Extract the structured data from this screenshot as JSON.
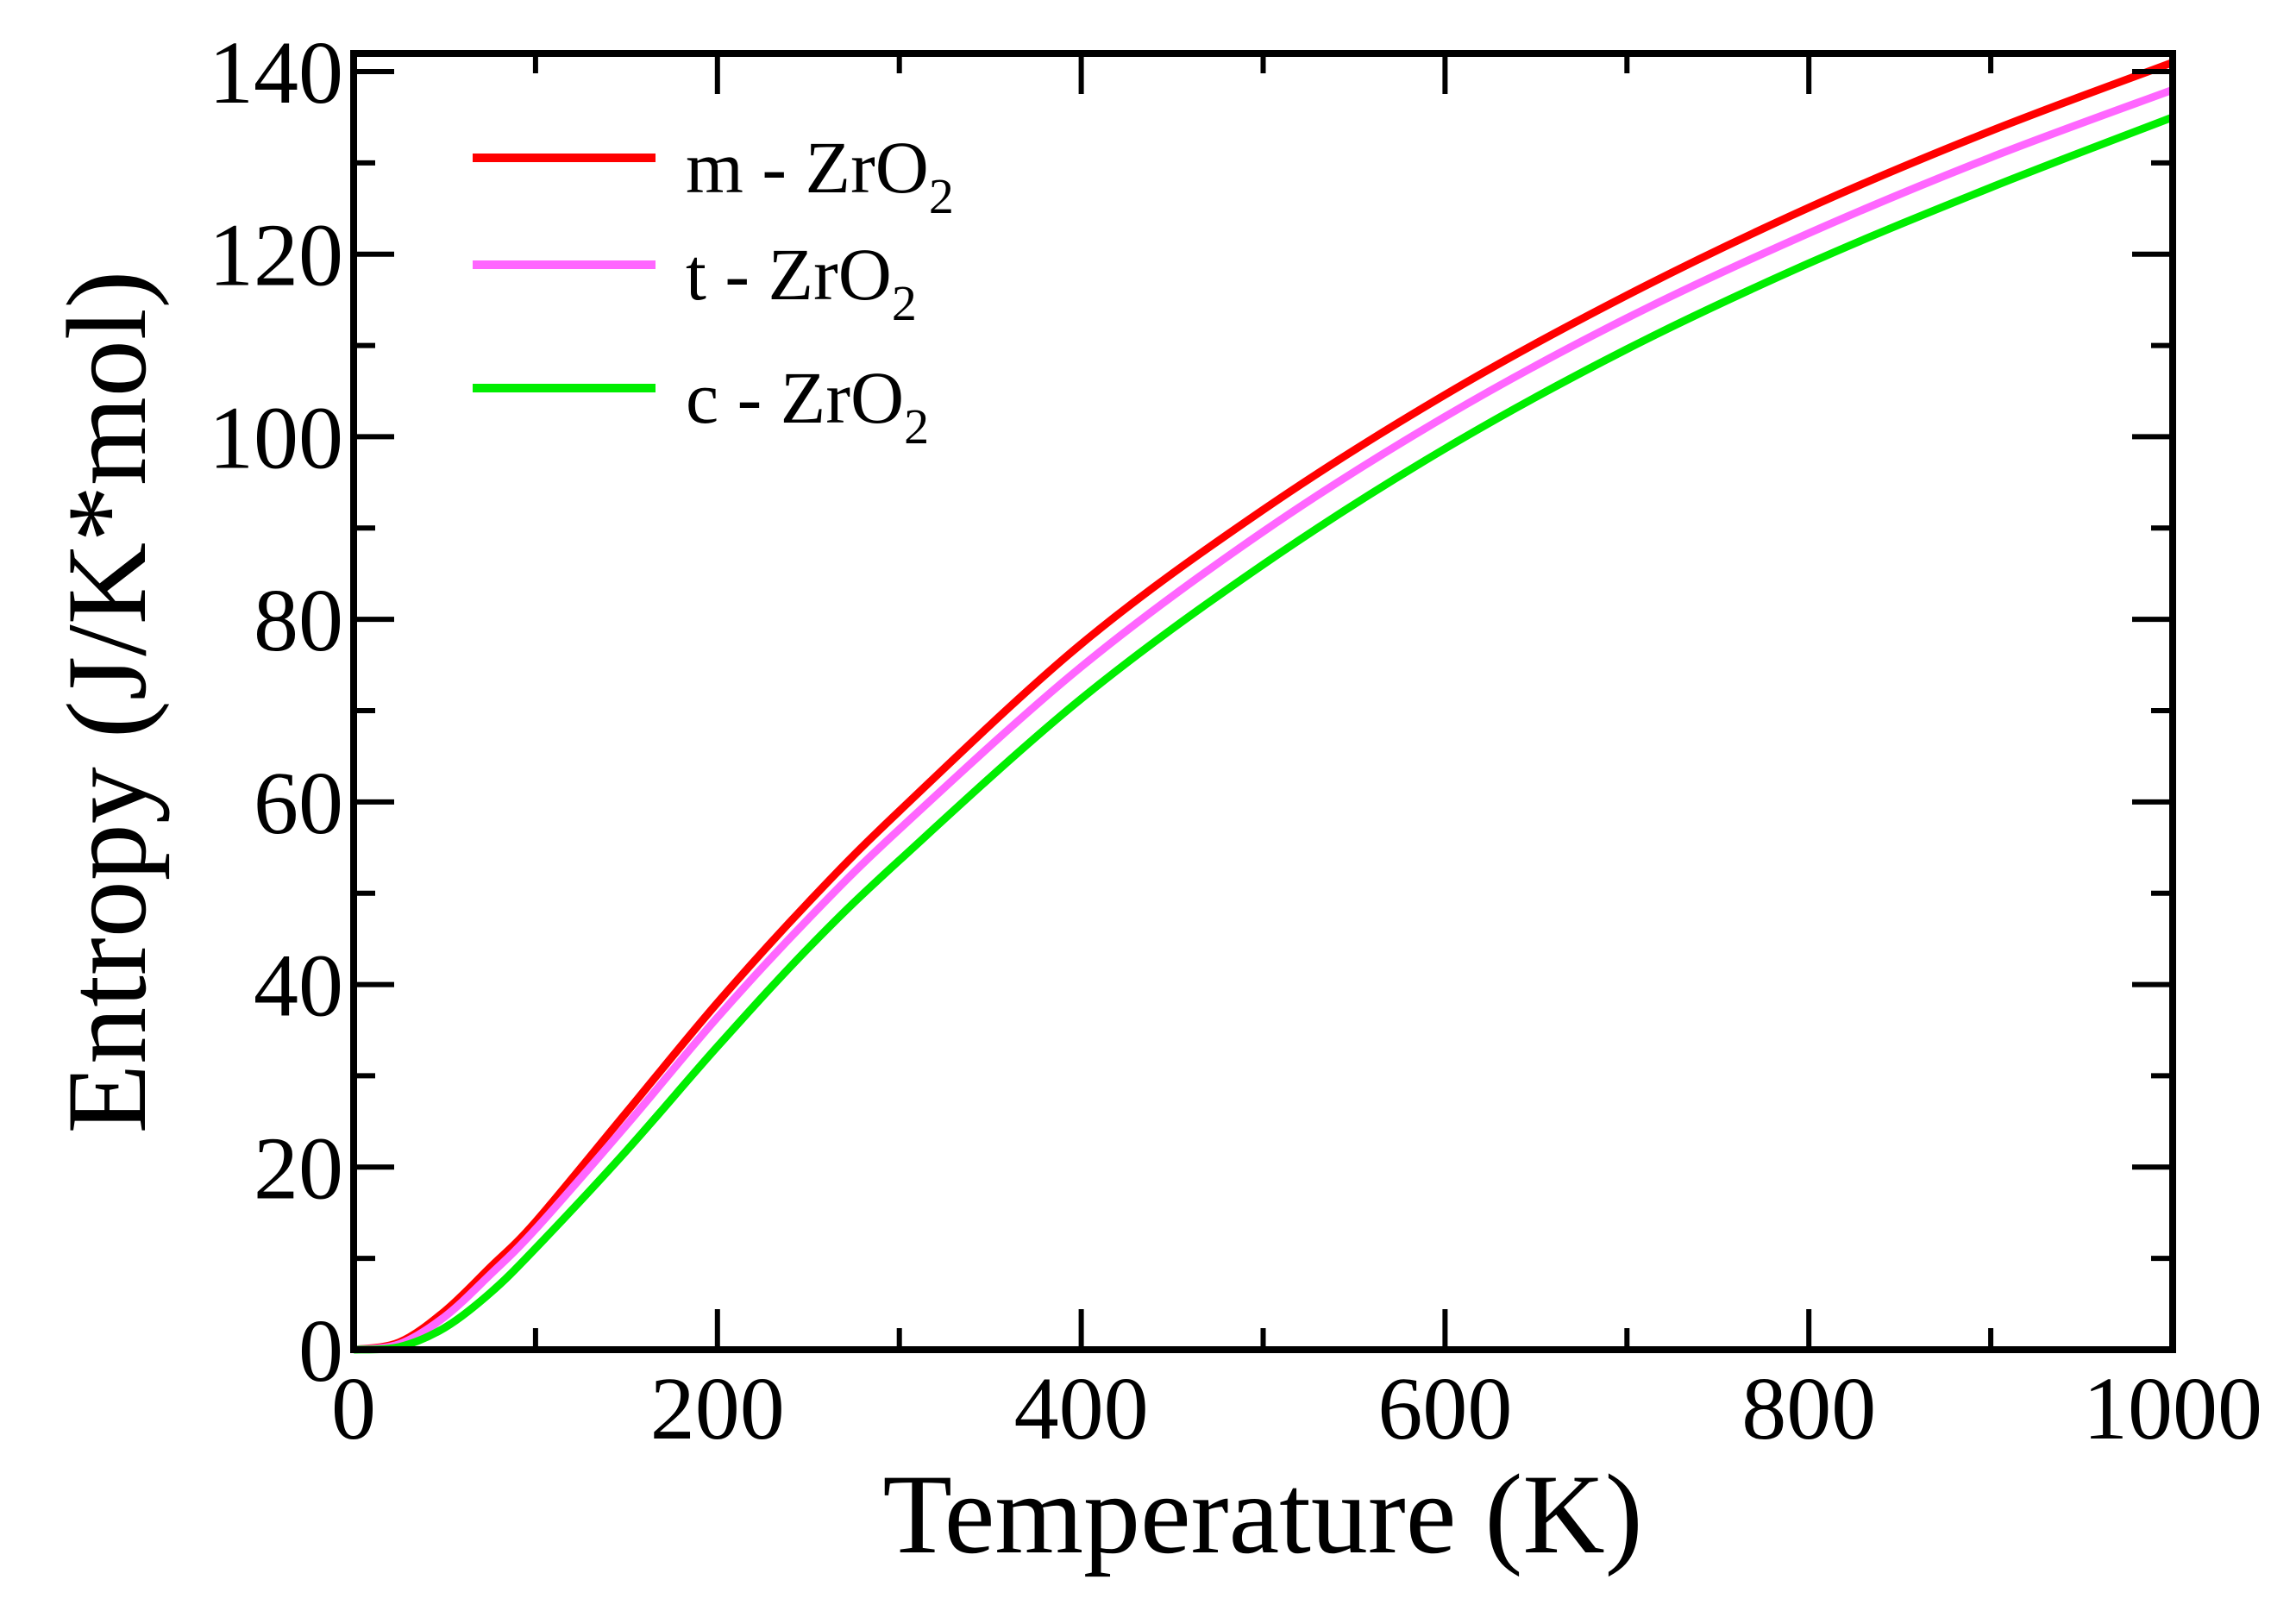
{
  "chart_data": {
    "type": "line",
    "title": "",
    "xlabel": "Temperature (K)",
    "ylabel": "Entropy (J/K*mol)",
    "xlim": [
      0,
      1000
    ],
    "ylim": [
      0,
      140
    ],
    "x_ticks": [
      0,
      200,
      400,
      600,
      800,
      1000
    ],
    "x_minor_ticks": [
      100,
      300,
      500,
      700,
      900
    ],
    "y_ticks": [
      0,
      20,
      40,
      60,
      80,
      100,
      120,
      140
    ],
    "y_minor_ticks": [
      10,
      30,
      50,
      70,
      90,
      110,
      130
    ],
    "grid": false,
    "legend_position": "upper left",
    "x": [
      0,
      25,
      50,
      75,
      100,
      150,
      200,
      250,
      300,
      400,
      500,
      600,
      700,
      800,
      900,
      1000
    ],
    "series": [
      {
        "name": "m - ZrO2",
        "label_main": "m  - ZrO",
        "label_sub": "2",
        "color": "#ff0000",
        "values": [
          0,
          0.8,
          4.2,
          9.0,
          14.0,
          26.0,
          38.0,
          49.0,
          59.0,
          77.3,
          92.0,
          104.6,
          115.5,
          125.1,
          133.5,
          141.0
        ]
      },
      {
        "name": "t - ZrO2",
        "label_main": "t  - ZrO",
        "label_sub": "2",
        "color": "#ff66ff",
        "values": [
          0,
          0.6,
          3.6,
          8.2,
          13.2,
          24.6,
          36.4,
          47.2,
          57.0,
          74.8,
          89.6,
          102.2,
          113.0,
          122.3,
          130.6,
          138.0
        ]
      },
      {
        "name": "c - ZrO2",
        "label_main": "c  - ZrO",
        "label_sub": "2",
        "color": "#00ee00",
        "values": [
          0,
          0.3,
          2.4,
          6.2,
          11.1,
          21.8,
          33.2,
          44.0,
          53.6,
          71.3,
          86.0,
          98.7,
          109.6,
          119.0,
          127.3,
          135.0
        ]
      }
    ]
  }
}
